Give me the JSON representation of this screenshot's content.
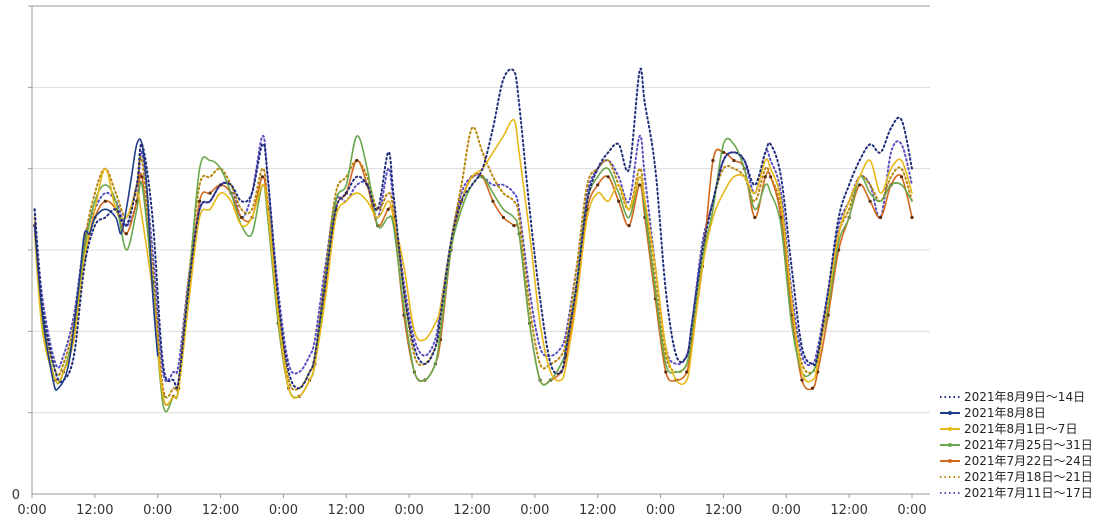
{
  "chart_data": {
    "type": "line",
    "title": "",
    "xlabel": "",
    "ylabel": "",
    "x_unit": "hours since first 0:00 label",
    "xlim": [
      0,
      168
    ],
    "ylim": [
      0,
      6
    ],
    "y_ticks": [
      {
        "value": 0,
        "label": "0"
      }
    ],
    "x_ticks": [
      {
        "value": 0,
        "label": "0:00"
      },
      {
        "value": 12,
        "label": "12:00"
      },
      {
        "value": 24,
        "label": "0:00"
      },
      {
        "value": 36,
        "label": "12:00"
      },
      {
        "value": 48,
        "label": "0:00"
      },
      {
        "value": 60,
        "label": "12:00"
      },
      {
        "value": 72,
        "label": "0:00"
      },
      {
        "value": 84,
        "label": "12:00"
      },
      {
        "value": 96,
        "label": "0:00"
      },
      {
        "value": 108,
        "label": "12:00"
      },
      {
        "value": 120,
        "label": "0:00"
      },
      {
        "value": 132,
        "label": "12:00"
      },
      {
        "value": 144,
        "label": "0:00"
      },
      {
        "value": 156,
        "label": "12:00"
      },
      {
        "value": 168,
        "label": "0:00"
      }
    ],
    "grid": "horizontal",
    "legend_position": "bottom-right",
    "series": [
      {
        "name": "2021年8月9日～14日",
        "color": "#1f2d7a",
        "style": "dotted",
        "x": [
          0.5,
          2,
          4.5,
          6,
          8,
          10,
          12,
          14,
          16,
          18,
          20,
          21,
          23,
          25,
          27,
          28,
          30,
          32,
          34,
          36,
          38,
          40,
          42,
          44,
          45,
          47,
          49,
          51,
          53,
          54,
          56,
          58,
          60,
          62,
          64,
          66,
          68,
          69,
          71,
          73,
          75,
          77,
          78,
          80,
          82,
          84,
          86,
          88,
          90,
          92,
          93,
          95,
          97,
          99,
          101,
          102,
          104,
          106,
          108,
          110,
          112,
          114,
          116,
          117,
          119,
          121,
          123,
          125,
          126,
          128,
          130,
          132,
          134,
          136,
          138,
          140,
          141,
          143,
          145,
          147,
          149,
          150,
          152,
          154,
          156,
          158,
          160,
          162,
          164,
          166,
          168
        ],
        "y": [
          3.5,
          2.3,
          1.5,
          1.4,
          1.7,
          2.8,
          3.3,
          3.4,
          3.5,
          3.3,
          3.8,
          4.3,
          3.4,
          1.6,
          1.4,
          1.4,
          2.6,
          3.5,
          3.6,
          3.8,
          3.8,
          3.6,
          3.7,
          4.3,
          3.9,
          2.4,
          1.5,
          1.3,
          1.5,
          1.7,
          2.6,
          3.5,
          3.7,
          3.9,
          3.8,
          3.5,
          4.2,
          3.7,
          2.5,
          1.8,
          1.6,
          1.8,
          2.2,
          3.1,
          3.6,
          3.8,
          4.0,
          4.5,
          5.1,
          5.2,
          4.8,
          3.5,
          2.4,
          1.6,
          1.5,
          1.8,
          2.6,
          3.6,
          4.0,
          4.2,
          4.3,
          4.0,
          5.2,
          4.8,
          4.0,
          2.5,
          1.7,
          1.7,
          2.1,
          3.0,
          3.6,
          4.1,
          4.2,
          4.1,
          3.8,
          4.2,
          4.3,
          3.9,
          2.8,
          1.8,
          1.6,
          1.7,
          2.5,
          3.4,
          3.8,
          4.1,
          4.3,
          4.2,
          4.5,
          4.6,
          4.0
        ]
      },
      {
        "name": "2021年8月8日",
        "color": "#1f3d8a",
        "style": "solid",
        "x": [
          0.5,
          2,
          4,
          5,
          7,
          9,
          10,
          11,
          12,
          14,
          16,
          17,
          18,
          19,
          20,
          21,
          22,
          23,
          24
        ],
        "y": [
          3.3,
          2.2,
          1.4,
          1.3,
          1.6,
          2.6,
          3.2,
          3.2,
          3.4,
          3.5,
          3.4,
          3.2,
          3.5,
          3.9,
          4.3,
          4.3,
          3.7,
          2.5,
          1.7
        ]
      },
      {
        "name": "2021年8月1日～7日",
        "color": "#e8b81a",
        "style": "solid",
        "x": [
          0.5,
          2,
          4.5,
          6,
          8,
          10,
          12,
          14,
          16,
          18,
          20,
          21,
          23,
          25,
          27,
          28,
          30,
          32,
          34,
          36,
          38,
          40,
          42,
          44,
          45,
          47,
          49,
          51,
          53,
          54,
          56,
          58,
          60,
          62,
          64,
          66,
          68,
          69,
          71,
          73,
          75,
          77,
          78,
          80,
          82,
          84,
          86,
          88,
          90,
          92,
          93,
          95,
          97,
          99,
          101,
          102,
          104,
          106,
          108,
          110,
          112,
          114,
          116,
          117,
          119,
          121,
          123,
          125,
          126,
          128,
          130,
          132,
          134,
          136,
          138,
          140,
          141,
          143,
          145,
          147,
          149,
          150,
          152,
          154,
          156,
          158,
          160,
          162,
          164,
          166,
          168
        ],
        "y": [
          3.2,
          2.0,
          1.4,
          1.5,
          1.9,
          2.9,
          3.5,
          4.0,
          3.5,
          3.4,
          3.7,
          3.4,
          2.5,
          1.2,
          1.2,
          1.3,
          2.4,
          3.4,
          3.5,
          3.7,
          3.6,
          3.3,
          3.4,
          3.8,
          3.5,
          2.2,
          1.3,
          1.2,
          1.4,
          1.6,
          2.4,
          3.4,
          3.6,
          3.7,
          3.6,
          3.4,
          3.6,
          3.4,
          2.8,
          2.0,
          1.9,
          2.1,
          2.3,
          3.1,
          3.6,
          3.9,
          4.0,
          4.2,
          4.4,
          4.6,
          4.2,
          3.2,
          2.1,
          1.5,
          1.4,
          1.6,
          2.4,
          3.4,
          3.7,
          3.6,
          3.8,
          3.5,
          3.9,
          3.6,
          2.8,
          1.8,
          1.4,
          1.4,
          1.8,
          2.8,
          3.4,
          3.7,
          3.9,
          3.9,
          3.7,
          4.1,
          4.0,
          3.6,
          2.4,
          1.5,
          1.4,
          1.6,
          2.4,
          3.2,
          3.6,
          3.9,
          4.1,
          3.7,
          4.0,
          4.1,
          3.7
        ]
      },
      {
        "name": "2021年7月25日～31日",
        "color": "#6aa84f",
        "style": "solid",
        "x": [
          0.5,
          2,
          4.5,
          6,
          8,
          10,
          12,
          14,
          16,
          18,
          20,
          21,
          23,
          25,
          27,
          28,
          30,
          32,
          34,
          36,
          38,
          40,
          42,
          44,
          45,
          47,
          49,
          51,
          53,
          54,
          56,
          58,
          60,
          62,
          64,
          66,
          68,
          69,
          71,
          73,
          75,
          77,
          78,
          80,
          82,
          84,
          86,
          88,
          90,
          92,
          93,
          95,
          97,
          99,
          101,
          102,
          104,
          106,
          108,
          110,
          112,
          114,
          116,
          117,
          119,
          121,
          123,
          125,
          126,
          128,
          130,
          132,
          134,
          136,
          138,
          140,
          141,
          143,
          145,
          147,
          149,
          150,
          152,
          154,
          156,
          158,
          160,
          162,
          164,
          166,
          168
        ],
        "y": [
          3.3,
          2.1,
          1.4,
          1.5,
          2.0,
          3.0,
          3.6,
          3.8,
          3.6,
          3.0,
          3.5,
          3.8,
          2.6,
          1.1,
          1.2,
          1.3,
          2.6,
          4.0,
          4.1,
          4.0,
          3.7,
          3.3,
          3.2,
          3.8,
          3.4,
          2.1,
          1.3,
          1.2,
          1.4,
          1.6,
          2.6,
          3.6,
          3.8,
          4.4,
          4.0,
          3.3,
          3.4,
          3.3,
          2.3,
          1.5,
          1.4,
          1.6,
          2.0,
          3.0,
          3.5,
          3.8,
          3.9,
          3.7,
          3.5,
          3.4,
          3.2,
          2.1,
          1.4,
          1.4,
          1.6,
          1.8,
          2.6,
          3.6,
          3.9,
          4.0,
          3.7,
          3.4,
          3.9,
          3.5,
          2.5,
          1.6,
          1.5,
          1.6,
          2.0,
          2.9,
          3.5,
          4.3,
          4.3,
          4.0,
          3.5,
          3.8,
          3.7,
          3.3,
          2.1,
          1.5,
          1.5,
          1.7,
          2.3,
          3.1,
          3.4,
          3.9,
          3.7,
          3.6,
          3.8,
          3.8,
          3.6
        ]
      },
      {
        "name": "2021年7月22日～24日",
        "color": "#d2691e",
        "style": "solid-marker",
        "x": [
          0.5,
          2,
          4.5,
          6,
          8,
          10,
          12,
          14,
          16,
          18,
          20,
          21,
          23,
          25,
          27,
          28,
          30,
          32,
          34,
          36,
          38,
          40,
          42,
          44,
          45,
          47,
          49,
          51,
          53,
          54,
          56,
          58,
          60,
          62,
          64,
          66,
          68,
          69,
          71,
          73,
          75,
          77,
          78,
          80,
          82,
          84,
          86,
          88,
          90,
          92,
          93,
          95,
          97,
          99,
          101,
          102,
          104,
          106,
          108,
          110,
          112,
          114,
          116,
          117,
          119,
          121,
          123,
          125,
          126,
          128,
          130,
          132,
          134,
          136,
          138,
          140,
          141,
          143,
          145,
          147,
          149,
          150,
          152,
          154,
          156,
          158,
          160,
          162,
          164,
          166,
          168
        ],
        "y": [
          3.3,
          2.1,
          1.4,
          1.5,
          2.0,
          2.9,
          3.4,
          3.6,
          3.5,
          3.2,
          3.6,
          3.9,
          2.6,
          1.2,
          1.2,
          1.3,
          2.5,
          3.6,
          3.7,
          3.8,
          3.7,
          3.4,
          3.4,
          3.9,
          3.5,
          2.1,
          1.3,
          1.2,
          1.4,
          1.6,
          2.5,
          3.5,
          3.7,
          4.1,
          3.8,
          3.3,
          3.5,
          3.4,
          2.2,
          1.5,
          1.4,
          1.6,
          1.9,
          3.0,
          3.6,
          3.9,
          3.9,
          3.6,
          3.4,
          3.3,
          3.2,
          2.1,
          1.4,
          1.4,
          1.5,
          1.7,
          2.5,
          3.5,
          3.8,
          3.9,
          3.6,
          3.3,
          3.8,
          3.4,
          2.4,
          1.5,
          1.4,
          1.5,
          1.9,
          2.8,
          4.1,
          4.2,
          4.1,
          4.0,
          3.4,
          3.9,
          3.9,
          3.4,
          2.2,
          1.4,
          1.3,
          1.5,
          2.2,
          3.0,
          3.4,
          3.8,
          3.6,
          3.4,
          3.8,
          3.9,
          3.4
        ]
      },
      {
        "name": "2021年7月18日～21日",
        "color": "#b8860b",
        "style": "dotted",
        "x": [
          0.5,
          2,
          4.5,
          6,
          8,
          10,
          12,
          14,
          16,
          18,
          20,
          21,
          23,
          25,
          27,
          28,
          30,
          32,
          34,
          36,
          38,
          40,
          42,
          44,
          45,
          47,
          49,
          51,
          53,
          54,
          56,
          58,
          60,
          62,
          64,
          66,
          68,
          69,
          71,
          73,
          75,
          77,
          78,
          80,
          82,
          84,
          86,
          88,
          90,
          92,
          93,
          95,
          97,
          99,
          101,
          102,
          104,
          106,
          108,
          110,
          112,
          114,
          116,
          117,
          119,
          121,
          123,
          125,
          126,
          128,
          130,
          132,
          134,
          136,
          138,
          140,
          141,
          143,
          145,
          147,
          149,
          150,
          152,
          154,
          156,
          158,
          160,
          162,
          164,
          166,
          168
        ],
        "y": [
          3.4,
          2.2,
          1.5,
          1.6,
          2.1,
          3.1,
          3.7,
          4.0,
          3.7,
          3.4,
          3.8,
          4.1,
          2.8,
          1.3,
          1.3,
          1.4,
          2.7,
          3.8,
          3.9,
          4.0,
          3.8,
          3.5,
          3.5,
          4.0,
          3.6,
          2.3,
          1.4,
          1.3,
          1.5,
          1.7,
          2.7,
          3.7,
          3.9,
          4.1,
          3.9,
          3.5,
          3.7,
          3.5,
          2.5,
          1.7,
          1.6,
          1.8,
          2.1,
          3.1,
          3.8,
          4.5,
          4.2,
          3.9,
          3.7,
          3.6,
          3.4,
          2.3,
          1.6,
          1.6,
          1.7,
          1.9,
          2.8,
          3.8,
          4.0,
          4.1,
          3.8,
          3.5,
          4.0,
          3.6,
          2.6,
          1.7,
          1.5,
          1.6,
          2.0,
          3.0,
          3.6,
          4.0,
          4.0,
          3.9,
          3.6,
          4.0,
          3.9,
          3.5,
          2.3,
          1.6,
          1.5,
          1.7,
          2.4,
          3.2,
          3.5,
          3.9,
          3.8,
          3.6,
          3.9,
          4.0,
          3.6
        ]
      },
      {
        "name": "2021年7月11日～17日",
        "color": "#5a4fc0",
        "style": "dotted",
        "x": [
          0.5,
          2,
          4.5,
          6,
          8,
          10,
          12,
          14,
          16,
          18,
          20,
          21,
          23,
          25,
          27,
          28,
          30,
          32,
          34,
          36,
          38,
          40,
          42,
          44,
          45,
          47,
          49,
          51,
          53,
          54,
          56,
          58,
          60,
          62,
          64,
          66,
          68,
          69,
          71,
          73,
          75,
          77,
          78,
          80,
          82,
          84,
          86,
          88,
          90,
          92,
          93,
          95,
          97,
          99,
          101,
          102,
          104,
          106,
          108,
          110,
          112,
          114,
          116,
          117,
          119,
          121,
          123,
          125,
          126,
          128,
          130,
          132,
          134,
          136,
          138,
          140,
          141,
          143,
          145,
          147,
          149,
          150,
          152,
          154,
          156,
          158,
          160,
          162,
          164,
          166,
          168
        ],
        "y": [
          3.5,
          2.4,
          1.6,
          1.7,
          2.2,
          3.1,
          3.5,
          3.7,
          3.6,
          3.3,
          3.6,
          4.2,
          3.0,
          1.5,
          1.5,
          1.6,
          2.7,
          3.5,
          3.6,
          3.8,
          3.8,
          3.4,
          3.7,
          4.4,
          3.9,
          2.5,
          1.6,
          1.5,
          1.7,
          1.9,
          2.8,
          3.6,
          3.6,
          3.8,
          3.8,
          3.4,
          4.0,
          3.6,
          2.6,
          1.9,
          1.7,
          1.9,
          2.3,
          3.1,
          3.7,
          3.9,
          3.9,
          3.8,
          3.8,
          3.7,
          3.5,
          2.5,
          1.8,
          1.7,
          1.8,
          2.0,
          2.8,
          3.7,
          4.0,
          4.1,
          3.9,
          3.6,
          4.4,
          3.9,
          2.8,
          1.8,
          1.6,
          1.7,
          2.1,
          3.1,
          3.6,
          4.1,
          4.2,
          4.1,
          3.7,
          4.2,
          4.1,
          3.7,
          2.5,
          1.7,
          1.6,
          1.8,
          2.5,
          3.3,
          3.6,
          3.9,
          3.8,
          3.4,
          4.2,
          4.3,
          3.8
        ]
      }
    ]
  }
}
